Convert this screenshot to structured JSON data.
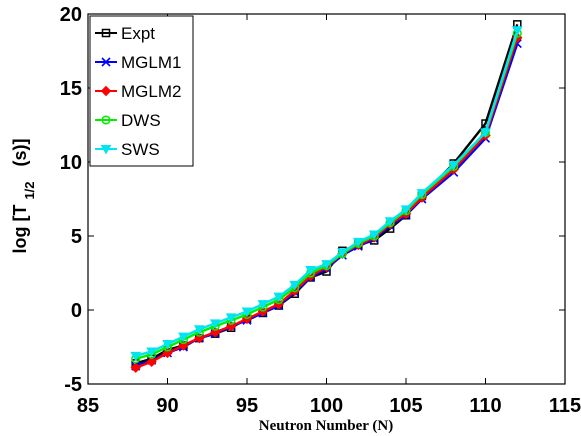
{
  "chart_data": {
    "type": "line",
    "xlabel": "Neutron Number (N)",
    "ylabel": {
      "prefix": "log [T",
      "subscript": "1/2",
      "suffix": "(s)]"
    },
    "xlim": [
      85,
      115
    ],
    "ylim": [
      -5,
      20
    ],
    "xticks": [
      85,
      90,
      95,
      100,
      105,
      110,
      115
    ],
    "yticks": [
      -5,
      0,
      5,
      10,
      15,
      20
    ],
    "grid": false,
    "legend_position": "top-left",
    "x": [
      88,
      89,
      90,
      91,
      92,
      93,
      94,
      95,
      96,
      97,
      98,
      99,
      100,
      101,
      102,
      103,
      104,
      105,
      106,
      108,
      110,
      112
    ],
    "series": [
      {
        "name": "Expt",
        "color": "#000000",
        "marker": "square",
        "values": [
          -3.6,
          -3.3,
          -2.7,
          -2.4,
          -1.9,
          -1.6,
          -1.2,
          -0.6,
          -0.2,
          0.3,
          1.1,
          2.2,
          2.6,
          4.0,
          4.4,
          4.7,
          5.5,
          6.4,
          7.7,
          9.9,
          12.6,
          19.3
        ]
      },
      {
        "name": "MGLM1",
        "color": "#0000ff",
        "marker": "x",
        "values": [
          -3.8,
          -3.4,
          -2.9,
          -2.5,
          -1.9,
          -1.6,
          -1.1,
          -0.7,
          -0.2,
          0.3,
          1.2,
          2.2,
          2.8,
          3.7,
          4.3,
          4.8,
          5.7,
          6.4,
          7.5,
          9.3,
          11.6,
          18.0
        ]
      },
      {
        "name": "MGLM2",
        "color": "#ff0000",
        "marker": "diamond",
        "values": [
          -3.9,
          -3.5,
          -2.9,
          -2.4,
          -1.9,
          -1.5,
          -1.1,
          -0.6,
          -0.1,
          0.4,
          1.3,
          2.3,
          2.9,
          3.8,
          4.4,
          4.9,
          5.8,
          6.5,
          7.6,
          9.5,
          11.8,
          18.4
        ]
      },
      {
        "name": "DWS",
        "color": "#00ee00",
        "marker": "circle",
        "values": [
          -3.3,
          -3.0,
          -2.5,
          -2.0,
          -1.5,
          -1.1,
          -0.7,
          -0.3,
          0.2,
          0.7,
          1.5,
          2.5,
          3.0,
          3.8,
          4.5,
          5.0,
          5.9,
          6.7,
          7.8,
          9.7,
          12.0,
          18.7
        ]
      },
      {
        "name": "SWS",
        "color": "#00e5ee",
        "marker": "triangle-down",
        "values": [
          -3.1,
          -2.8,
          -2.3,
          -1.8,
          -1.3,
          -0.9,
          -0.5,
          -0.1,
          0.4,
          0.9,
          1.7,
          2.7,
          3.1,
          3.9,
          4.6,
          5.1,
          6.0,
          6.8,
          7.9,
          9.8,
          12.0,
          18.9
        ]
      }
    ]
  }
}
